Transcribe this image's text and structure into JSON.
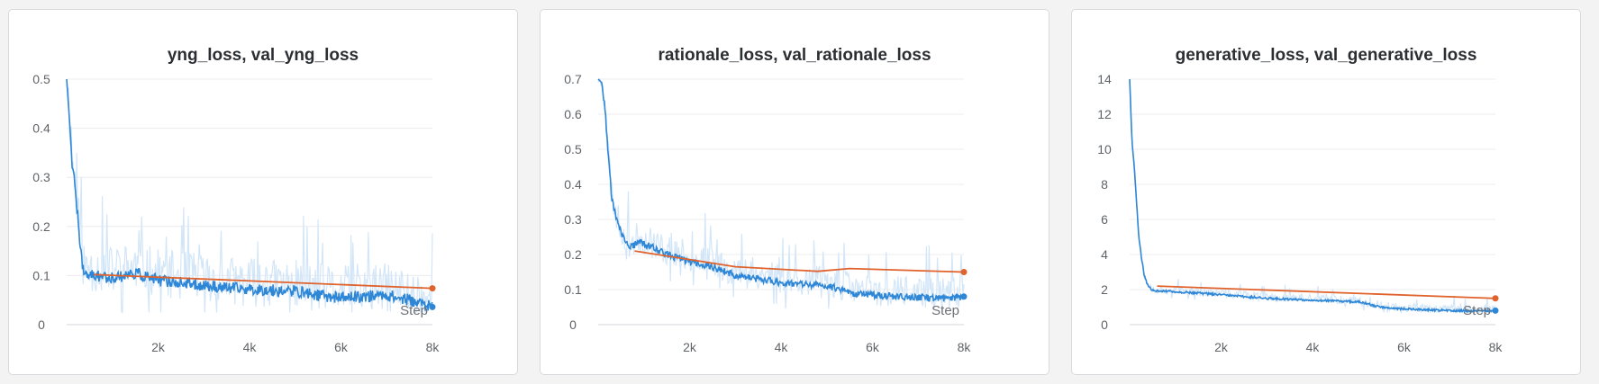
{
  "colors": {
    "train": "#2e86d6",
    "train_raw": "#d3e6f8",
    "val": "#e0622c",
    "grid": "#ececee"
  },
  "chart_data": [
    {
      "type": "line",
      "title": "yng_loss, val_yng_loss",
      "xlabel": "Step",
      "xlim": [
        0,
        8000
      ],
      "ylim": [
        0,
        0.5
      ],
      "x_ticks": [
        2000,
        4000,
        6000,
        8000
      ],
      "x_tick_labels": [
        "2k",
        "4k",
        "6k",
        "8k"
      ],
      "y_ticks": [
        0,
        0.1,
        0.2,
        0.3,
        0.4,
        0.5
      ],
      "y_tick_labels": [
        "0",
        "0.1",
        "0.2",
        "0.3",
        "0.4",
        "0.5"
      ],
      "series": [
        {
          "name": "yng_loss",
          "role": "train",
          "noise": 0.012,
          "raw_noise": 0.05,
          "seed": 11,
          "points": [
            [
              0,
              0.5
            ],
            [
              60,
              0.42
            ],
            [
              120,
              0.33
            ],
            [
              180,
              0.28
            ],
            [
              260,
              0.2
            ],
            [
              340,
              0.12
            ],
            [
              420,
              0.098
            ],
            [
              600,
              0.1
            ],
            [
              1000,
              0.095
            ],
            [
              1500,
              0.105
            ],
            [
              2000,
              0.09
            ],
            [
              2500,
              0.085
            ],
            [
              3000,
              0.08
            ],
            [
              3500,
              0.075
            ],
            [
              4000,
              0.072
            ],
            [
              4500,
              0.07
            ],
            [
              5000,
              0.068
            ],
            [
              5500,
              0.06
            ],
            [
              6000,
              0.055
            ],
            [
              6500,
              0.058
            ],
            [
              7000,
              0.06
            ],
            [
              7500,
              0.05
            ],
            [
              8000,
              0.036
            ]
          ]
        },
        {
          "name": "val_yng_loss",
          "role": "val",
          "points": [
            [
              600,
              0.102
            ],
            [
              8000,
              0.074
            ]
          ]
        }
      ]
    },
    {
      "type": "line",
      "title": "rationale_loss, val_rationale_loss",
      "xlabel": "Step",
      "xlim": [
        0,
        8000
      ],
      "ylim": [
        0,
        0.7
      ],
      "x_ticks": [
        2000,
        4000,
        6000,
        8000
      ],
      "x_tick_labels": [
        "2k",
        "4k",
        "6k",
        "8k"
      ],
      "y_ticks": [
        0,
        0.1,
        0.2,
        0.3,
        0.4,
        0.5,
        0.6,
        0.7
      ],
      "y_tick_labels": [
        "0",
        "0.1",
        "0.2",
        "0.3",
        "0.4",
        "0.5",
        "0.6",
        "0.7"
      ],
      "series": [
        {
          "name": "rationale_loss",
          "role": "train",
          "noise": 0.01,
          "raw_noise": 0.045,
          "seed": 23,
          "points": [
            [
              0,
              0.7
            ],
            [
              80,
              0.69
            ],
            [
              150,
              0.62
            ],
            [
              220,
              0.48
            ],
            [
              300,
              0.36
            ],
            [
              400,
              0.3
            ],
            [
              500,
              0.26
            ],
            [
              700,
              0.22
            ],
            [
              900,
              0.235
            ],
            [
              1200,
              0.22
            ],
            [
              1500,
              0.2
            ],
            [
              2000,
              0.18
            ],
            [
              2500,
              0.165
            ],
            [
              3000,
              0.14
            ],
            [
              3500,
              0.13
            ],
            [
              4000,
              0.12
            ],
            [
              4500,
              0.115
            ],
            [
              5000,
              0.11
            ],
            [
              5400,
              0.1
            ],
            [
              5500,
              0.09
            ],
            [
              6000,
              0.085
            ],
            [
              6500,
              0.08
            ],
            [
              7000,
              0.078
            ],
            [
              7500,
              0.075
            ],
            [
              8000,
              0.08
            ]
          ]
        },
        {
          "name": "val_rationale_loss",
          "role": "val",
          "points": [
            [
              800,
              0.21
            ],
            [
              3000,
              0.165
            ],
            [
              4800,
              0.152
            ],
            [
              5500,
              0.16
            ],
            [
              8000,
              0.15
            ]
          ]
        }
      ]
    },
    {
      "type": "line",
      "title": "generative_loss, val_generative_loss",
      "xlabel": "Step",
      "xlim": [
        0,
        8000
      ],
      "ylim": [
        0,
        14
      ],
      "x_ticks": [
        2000,
        4000,
        6000,
        8000
      ],
      "x_tick_labels": [
        "2k",
        "4k",
        "6k",
        "8k"
      ],
      "y_ticks": [
        0,
        2,
        4,
        6,
        8,
        10,
        12,
        14
      ],
      "y_tick_labels": [
        "0",
        "2",
        "4",
        "6",
        "8",
        "10",
        "12",
        "14"
      ],
      "series": [
        {
          "name": "generative_loss",
          "role": "train",
          "noise": 0.06,
          "raw_noise": 0.25,
          "seed": 37,
          "points": [
            [
              0,
              14
            ],
            [
              50,
              10.5
            ],
            [
              100,
              9
            ],
            [
              150,
              7
            ],
            [
              200,
              5
            ],
            [
              260,
              3.8
            ],
            [
              320,
              2.8
            ],
            [
              400,
              2.2
            ],
            [
              500,
              1.95
            ],
            [
              800,
              1.9
            ],
            [
              1500,
              1.8
            ],
            [
              2000,
              1.7
            ],
            [
              2500,
              1.6
            ],
            [
              3000,
              1.5
            ],
            [
              3500,
              1.45
            ],
            [
              4000,
              1.4
            ],
            [
              4500,
              1.35
            ],
            [
              5000,
              1.3
            ],
            [
              5500,
              1.0
            ],
            [
              6000,
              0.9
            ],
            [
              6500,
              0.85
            ],
            [
              7000,
              0.8
            ],
            [
              7500,
              0.78
            ],
            [
              8000,
              0.8
            ]
          ]
        },
        {
          "name": "val_generative_loss",
          "role": "val",
          "points": [
            [
              600,
              2.2
            ],
            [
              8000,
              1.5
            ]
          ]
        }
      ]
    }
  ]
}
